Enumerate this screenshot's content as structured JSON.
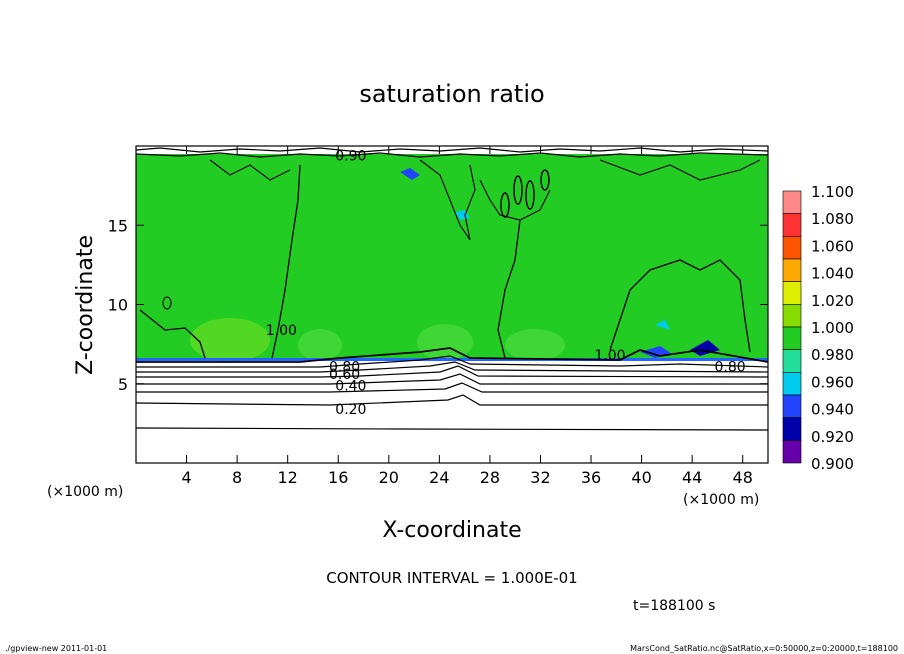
{
  "chart_data": {
    "type": "heatmap",
    "title": "saturation ratio",
    "xlabel": "X-coordinate",
    "ylabel": "Z-coordinate",
    "xunit": "(×1000 m)",
    "yunit": "(×1000 m)",
    "xlim": [
      0,
      50
    ],
    "ylim": [
      0,
      20
    ],
    "x_ticks": [
      4,
      8,
      12,
      16,
      20,
      24,
      28,
      32,
      36,
      40,
      44,
      48
    ],
    "y_ticks": [
      5,
      10,
      15
    ],
    "colorbar": {
      "levels": [
        "1.100",
        "1.080",
        "1.060",
        "1.040",
        "1.020",
        "1.000",
        "0.980",
        "0.960",
        "0.940",
        "0.920",
        "0.900"
      ],
      "colors": [
        "#ff8888",
        "#ff3333",
        "#ff5500",
        "#ffaa00",
        "#ddee00",
        "#88dd00",
        "#22cc22",
        "#22dd99",
        "#00ccee",
        "#2244ff",
        "#0000aa",
        "#6600aa"
      ]
    },
    "contour_labels": [
      {
        "text": "1.00",
        "x": 11.5,
        "z": 8.4
      },
      {
        "text": "1.00",
        "x": 37.5,
        "z": 6.8
      },
      {
        "text": "0.80",
        "x": 16.5,
        "z": 6.1
      },
      {
        "text": "0.60",
        "x": 16.5,
        "z": 5.6
      },
      {
        "text": "0.40",
        "x": 17.0,
        "z": 4.9
      },
      {
        "text": "0.20",
        "x": 17.0,
        "z": 3.4
      },
      {
        "text": "0.80",
        "x": 47.0,
        "z": 6.1
      },
      {
        "text": "0.90",
        "x": 17.0,
        "z": 19.4
      }
    ],
    "moist_layer_base_z": 6.5,
    "contour_interval_text": "CONTOUR INTERVAL = 1.000E-01",
    "time_text": "t=188100 s"
  },
  "footer": {
    "left": "./gpview-new   2011-01-01",
    "right": "MarsCond_SatRatio.nc@SatRatio,x=0:50000,z=0:20000,t=188100"
  }
}
